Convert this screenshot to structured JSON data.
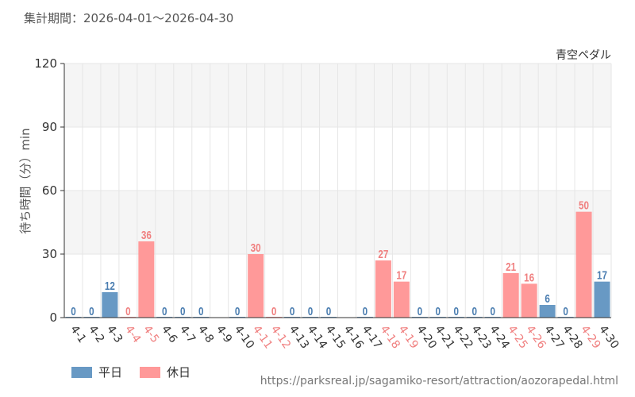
{
  "header": {
    "period_label": "集計期間：2026-04-01～2026-04-30"
  },
  "legend": {
    "weekday_label": "平日",
    "holiday_label": "休日"
  },
  "footer": {
    "source_url": "https://parksreal.jp/sagamiko-resort/attraction/aozorapedal.html"
  },
  "colors": {
    "weekday": "#6899c4",
    "holiday": "#ff9999",
    "weekday_text": "#4a7db0",
    "holiday_text": "#f08080",
    "axis_text": "#333333",
    "grid": "#e6e6e6",
    "band": "#f5f5f5"
  },
  "chart_data": {
    "type": "bar",
    "title": "青空ペダル",
    "ylabel": "待ち時間（分）min",
    "xlabel": "",
    "ylim": [
      0,
      120
    ],
    "yticks": [
      0,
      30,
      60,
      90,
      120
    ],
    "grid": true,
    "legend_position": "bottom-left",
    "categories": [
      "4-1",
      "4-2",
      "4-3",
      "4-4",
      "4-5",
      "4-6",
      "4-7",
      "4-8",
      "4-9",
      "4-10",
      "4-11",
      "4-12",
      "4-13",
      "4-14",
      "4-15",
      "4-16",
      "4-17",
      "4-18",
      "4-19",
      "4-20",
      "4-21",
      "4-22",
      "4-23",
      "4-24",
      "4-25",
      "4-26",
      "4-27",
      "4-28",
      "4-29",
      "4-30"
    ],
    "day_types": [
      "weekday",
      "weekday",
      "weekday",
      "holiday",
      "holiday",
      "weekday",
      "weekday",
      "weekday",
      "weekday",
      "weekday",
      "holiday",
      "holiday",
      "weekday",
      "weekday",
      "weekday",
      "weekday",
      "weekday",
      "holiday",
      "holiday",
      "weekday",
      "weekday",
      "weekday",
      "weekday",
      "weekday",
      "holiday",
      "holiday",
      "weekday",
      "weekday",
      "holiday",
      "weekday"
    ],
    "values": [
      0,
      0,
      12,
      0,
      36,
      0,
      0,
      0,
      null,
      0,
      30,
      0,
      0,
      0,
      0,
      null,
      0,
      27,
      17,
      0,
      0,
      0,
      0,
      0,
      21,
      16,
      6,
      0,
      50,
      17
    ],
    "series": [
      {
        "name": "平日",
        "values": [
          0,
          0,
          12,
          null,
          null,
          0,
          0,
          0,
          null,
          0,
          null,
          null,
          0,
          0,
          0,
          null,
          0,
          null,
          null,
          0,
          0,
          0,
          0,
          0,
          null,
          null,
          6,
          0,
          null,
          17
        ]
      },
      {
        "name": "休日",
        "values": [
          null,
          null,
          null,
          0,
          36,
          null,
          null,
          null,
          null,
          null,
          30,
          0,
          null,
          null,
          null,
          null,
          null,
          27,
          17,
          null,
          null,
          null,
          null,
          null,
          21,
          16,
          null,
          null,
          50,
          null
        ]
      }
    ]
  }
}
